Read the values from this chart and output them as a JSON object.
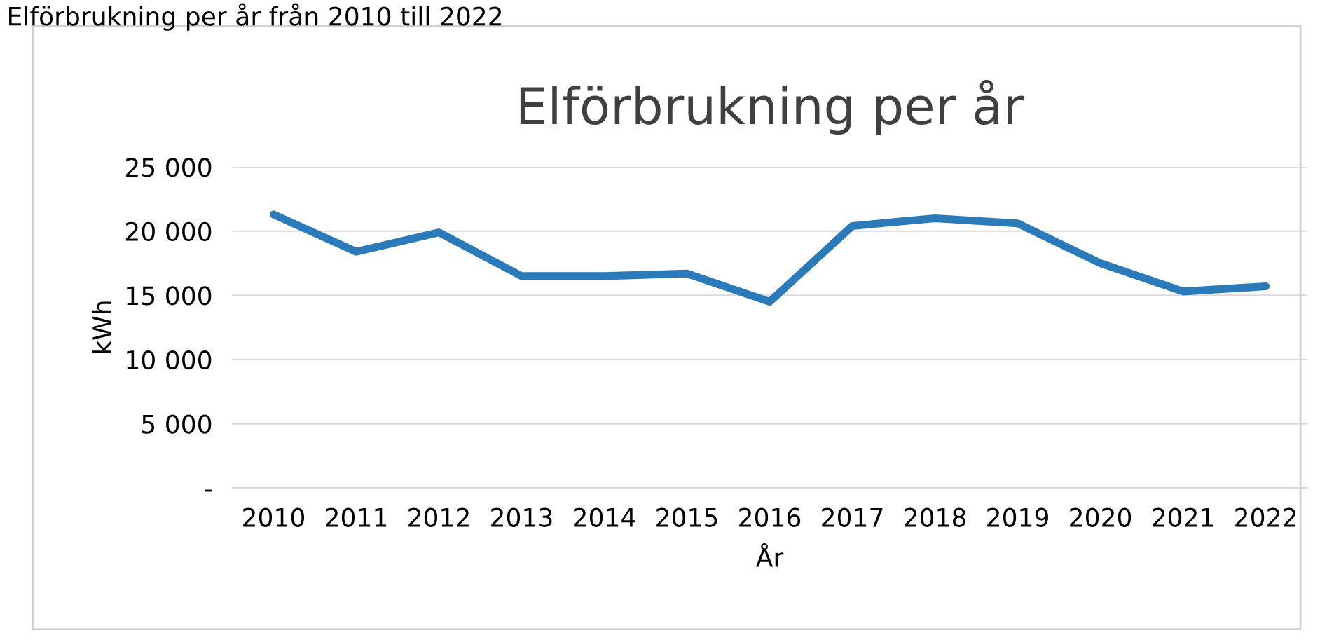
{
  "chart_data": {
    "type": "line",
    "title": "Elförbrukning per år",
    "annotations": [
      "Elförbrukning per år från 2010 till 2022"
    ],
    "xlabel": "År",
    "ylabel": "kWh",
    "categories": [
      "2010",
      "2011",
      "2012",
      "2013",
      "2014",
      "2015",
      "2016",
      "2017",
      "2018",
      "2019",
      "2020",
      "2021",
      "2022"
    ],
    "series": [
      {
        "color": "#2b7bba",
        "values": [
          21300,
          18400,
          19900,
          16500,
          16500,
          16700,
          14500,
          20400,
          21000,
          20600,
          17500,
          15300,
          15700
        ]
      }
    ],
    "ylim": [
      0,
      25000
    ],
    "yticks": [
      {
        "value": 0,
        "label": "-"
      },
      {
        "value": 5000,
        "label": "5 000"
      },
      {
        "value": 10000,
        "label": "10 000"
      },
      {
        "value": 15000,
        "label": "15 000"
      },
      {
        "value": 20000,
        "label": "20 000"
      },
      {
        "value": 25000,
        "label": "25 000"
      }
    ],
    "grid": "y",
    "marker": "none",
    "line_style": "solid"
  }
}
